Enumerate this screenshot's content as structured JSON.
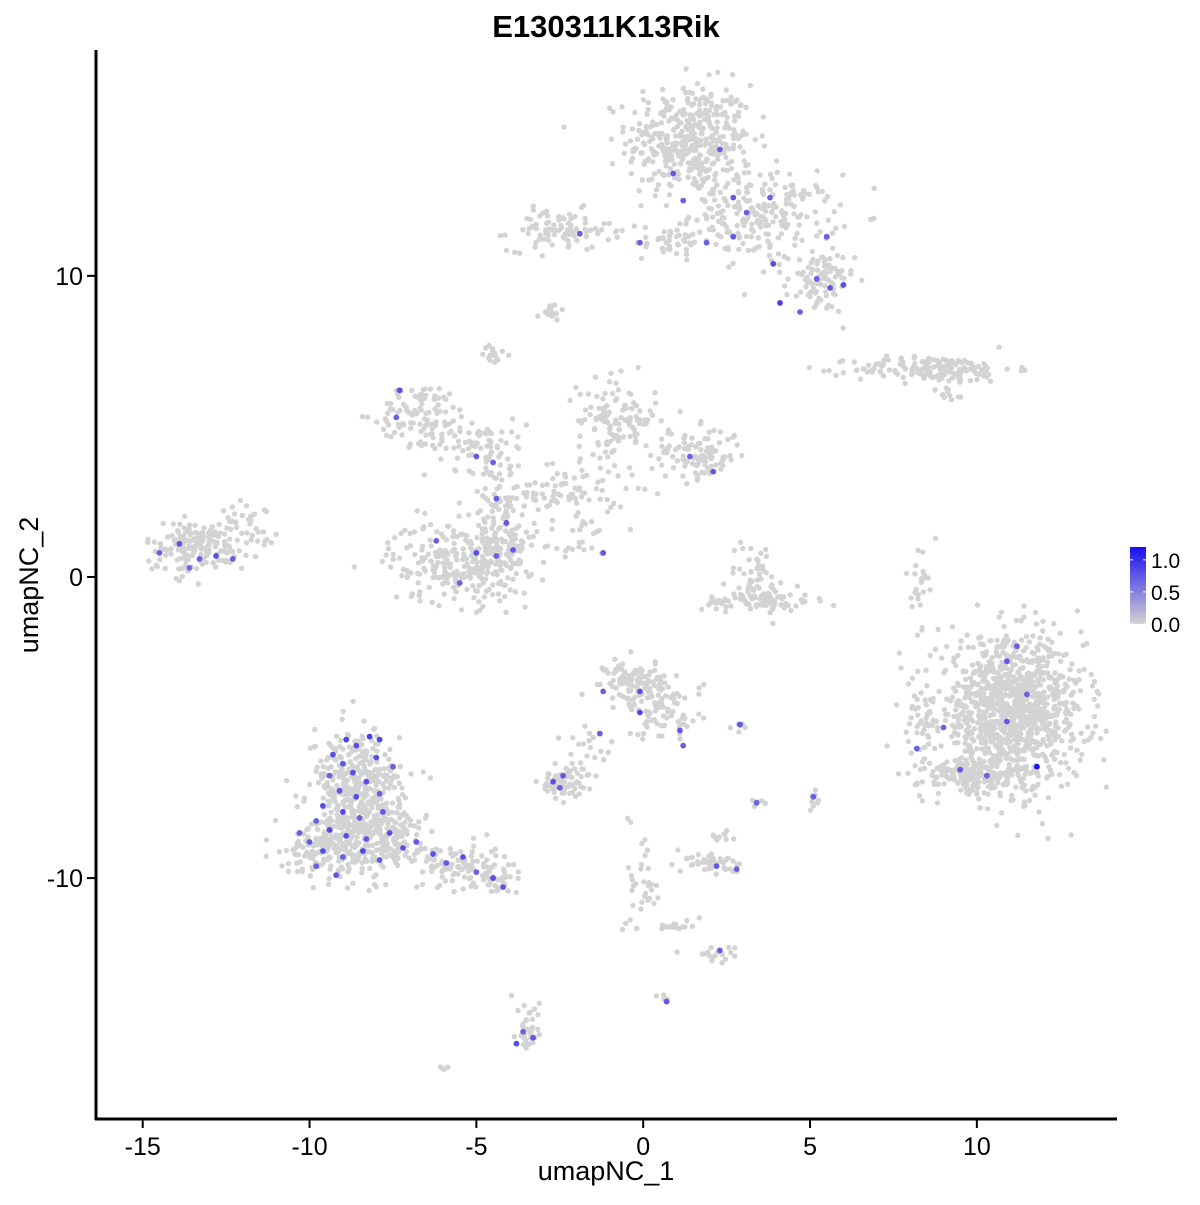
{
  "chart_data": {
    "type": "scatter",
    "title": "E130311K13Rik",
    "xlabel": "umapNC_1",
    "ylabel": "umapNC_2",
    "xlim": [
      -16.4,
      14.2
    ],
    "ylim": [
      -18.0,
      17.5
    ],
    "xticks": [
      -15,
      -10,
      -5,
      0,
      5,
      10
    ],
    "xtick_labels": [
      "-15",
      "-10",
      "-5",
      "0",
      "5",
      "10"
    ],
    "yticks": [
      -10,
      0,
      10
    ],
    "ytick_labels": [
      "-10",
      "0",
      "10"
    ],
    "grid": false,
    "legend_position": "right",
    "color_scale": {
      "low_color": "#d3d3d3",
      "high_color": "#1a0ff0",
      "min": 0.0,
      "max": 1.2,
      "ticks": [
        0.0,
        0.5,
        1.0
      ],
      "tick_labels": [
        "0.0",
        "0.5",
        "1.0"
      ]
    },
    "background_color": "#d3d3d3",
    "clusters": [
      {
        "cx": 1.4,
        "cy": 14.5,
        "sx": 1.1,
        "sy": 1.1,
        "n": 420
      },
      {
        "cx": 3.6,
        "cy": 12.0,
        "sx": 1.3,
        "sy": 0.8,
        "n": 220
      },
      {
        "cx": 5.3,
        "cy": 9.8,
        "sx": 0.6,
        "sy": 0.6,
        "n": 90
      },
      {
        "cx": -2.5,
        "cy": 11.5,
        "sx": 0.9,
        "sy": 0.4,
        "n": 90
      },
      {
        "cx": 0.6,
        "cy": 11.2,
        "sx": 0.9,
        "sy": 0.3,
        "n": 40
      },
      {
        "cx": -2.8,
        "cy": 8.8,
        "sx": 0.2,
        "sy": 0.15,
        "n": 15
      },
      {
        "cx": -4.4,
        "cy": 7.4,
        "sx": 0.25,
        "sy": 0.3,
        "n": 15
      },
      {
        "cx": 8.7,
        "cy": 6.9,
        "sx": 1.4,
        "sy": 0.25,
        "n": 160
      },
      {
        "cx": 9.3,
        "cy": 6.3,
        "sx": 0.4,
        "sy": 0.3,
        "n": 15
      },
      {
        "cx": -6.6,
        "cy": 5.4,
        "sx": 0.8,
        "sy": 0.6,
        "n": 100
      },
      {
        "cx": -5.0,
        "cy": 4.4,
        "sx": 0.9,
        "sy": 0.5,
        "n": 70
      },
      {
        "cx": -0.8,
        "cy": 5.2,
        "sx": 0.7,
        "sy": 0.8,
        "n": 120
      },
      {
        "cx": 1.6,
        "cy": 4.1,
        "sx": 0.8,
        "sy": 0.5,
        "n": 110
      },
      {
        "cx": -2.5,
        "cy": 2.8,
        "sx": 1.2,
        "sy": 0.5,
        "n": 90
      },
      {
        "cx": -4.3,
        "cy": 2.0,
        "sx": 0.4,
        "sy": 1.1,
        "n": 70
      },
      {
        "cx": -5.6,
        "cy": 0.5,
        "sx": 1.2,
        "sy": 0.8,
        "n": 230
      },
      {
        "cx": -4.2,
        "cy": 0.8,
        "sx": 0.6,
        "sy": 0.8,
        "n": 90
      },
      {
        "cx": -1.8,
        "cy": 1.3,
        "sx": 0.4,
        "sy": 0.5,
        "n": 20
      },
      {
        "cx": -13.4,
        "cy": 1.0,
        "sx": 0.9,
        "sy": 0.5,
        "n": 170
      },
      {
        "cx": -11.8,
        "cy": 1.8,
        "sx": 0.5,
        "sy": 0.4,
        "n": 35
      },
      {
        "cx": 3.4,
        "cy": 0.0,
        "sx": 0.5,
        "sy": 0.7,
        "n": 50
      },
      {
        "cx": 3.5,
        "cy": -0.8,
        "sx": 1.0,
        "sy": 0.2,
        "n": 80
      },
      {
        "cx": 8.3,
        "cy": -0.2,
        "sx": 0.15,
        "sy": 0.8,
        "n": 25
      },
      {
        "cx": 11.0,
        "cy": -4.5,
        "sx": 1.3,
        "sy": 1.4,
        "n": 1100
      },
      {
        "cx": 9.8,
        "cy": -6.6,
        "sx": 0.9,
        "sy": 0.4,
        "n": 160
      },
      {
        "cx": 8.4,
        "cy": -4.8,
        "sx": 0.3,
        "sy": 0.6,
        "n": 25
      },
      {
        "cx": -0.3,
        "cy": -3.4,
        "sx": 0.5,
        "sy": 0.4,
        "n": 90
      },
      {
        "cx": 0.6,
        "cy": -4.4,
        "sx": 0.7,
        "sy": 0.6,
        "n": 90
      },
      {
        "cx": -1.7,
        "cy": -5.8,
        "sx": 0.5,
        "sy": 0.7,
        "n": 25
      },
      {
        "cx": -2.4,
        "cy": -6.9,
        "sx": 0.45,
        "sy": 0.3,
        "n": 55
      },
      {
        "cx": 2.9,
        "cy": -5.0,
        "sx": 0.15,
        "sy": 0.1,
        "n": 6
      },
      {
        "cx": 3.4,
        "cy": -7.5,
        "sx": 0.15,
        "sy": 0.1,
        "n": 6
      },
      {
        "cx": 5.1,
        "cy": -7.4,
        "sx": 0.1,
        "sy": 0.2,
        "n": 8
      },
      {
        "cx": -8.6,
        "cy": -7.0,
        "sx": 0.8,
        "sy": 1.1,
        "n": 360
      },
      {
        "cx": -9.3,
        "cy": -8.9,
        "sx": 0.8,
        "sy": 0.6,
        "n": 200
      },
      {
        "cx": -7.8,
        "cy": -8.6,
        "sx": 0.7,
        "sy": 0.7,
        "n": 180
      },
      {
        "cx": -5.6,
        "cy": -9.5,
        "sx": 0.8,
        "sy": 0.4,
        "n": 90
      },
      {
        "cx": -4.6,
        "cy": -10.1,
        "sx": 0.5,
        "sy": 0.25,
        "n": 40
      },
      {
        "cx": 2.1,
        "cy": -9.5,
        "sx": 0.5,
        "sy": 0.25,
        "n": 45
      },
      {
        "cx": 2.4,
        "cy": -8.6,
        "sx": 0.2,
        "sy": 0.2,
        "n": 10
      },
      {
        "cx": 0.0,
        "cy": -10.0,
        "sx": 0.3,
        "sy": 1.0,
        "n": 35
      },
      {
        "cx": 1.0,
        "cy": -11.6,
        "sx": 0.4,
        "sy": 0.15,
        "n": 15
      },
      {
        "cx": 2.1,
        "cy": -12.5,
        "sx": 0.4,
        "sy": 0.15,
        "n": 18
      },
      {
        "cx": -3.4,
        "cy": -15.0,
        "sx": 0.2,
        "sy": 0.6,
        "n": 35
      },
      {
        "cx": -6.0,
        "cy": -16.3,
        "sx": 0.1,
        "sy": 0.1,
        "n": 4
      },
      {
        "cx": 0.6,
        "cy": -14.0,
        "sx": 0.1,
        "sy": 0.1,
        "n": 4
      }
    ],
    "expressing_cells": [
      {
        "x": -8.9,
        "y": -5.4,
        "v": 0.9
      },
      {
        "x": -8.6,
        "y": -5.6,
        "v": 0.8
      },
      {
        "x": -8.2,
        "y": -5.3,
        "v": 0.9
      },
      {
        "x": -7.9,
        "y": -5.4,
        "v": 0.85
      },
      {
        "x": -9.3,
        "y": -5.9,
        "v": 0.8
      },
      {
        "x": -9.0,
        "y": -6.2,
        "v": 0.75
      },
      {
        "x": -8.7,
        "y": -6.5,
        "v": 0.8
      },
      {
        "x": -9.4,
        "y": -6.6,
        "v": 0.7
      },
      {
        "x": -8.3,
        "y": -6.8,
        "v": 0.8
      },
      {
        "x": -9.1,
        "y": -7.1,
        "v": 0.75
      },
      {
        "x": -8.6,
        "y": -7.3,
        "v": 0.8
      },
      {
        "x": -7.9,
        "y": -7.2,
        "v": 0.7
      },
      {
        "x": -9.6,
        "y": -7.6,
        "v": 0.8
      },
      {
        "x": -9.0,
        "y": -7.8,
        "v": 0.85
      },
      {
        "x": -8.5,
        "y": -8.0,
        "v": 0.7
      },
      {
        "x": -7.8,
        "y": -7.8,
        "v": 0.75
      },
      {
        "x": -9.8,
        "y": -8.1,
        "v": 0.7
      },
      {
        "x": -9.4,
        "y": -8.4,
        "v": 0.85
      },
      {
        "x": -8.9,
        "y": -8.6,
        "v": 0.8
      },
      {
        "x": -8.3,
        "y": -8.7,
        "v": 0.75
      },
      {
        "x": -7.6,
        "y": -8.5,
        "v": 0.8
      },
      {
        "x": -10.0,
        "y": -8.8,
        "v": 0.75
      },
      {
        "x": -9.6,
        "y": -9.1,
        "v": 0.8
      },
      {
        "x": -9.0,
        "y": -9.3,
        "v": 0.7
      },
      {
        "x": -8.4,
        "y": -9.1,
        "v": 0.85
      },
      {
        "x": -7.9,
        "y": -9.4,
        "v": 0.75
      },
      {
        "x": -9.8,
        "y": -9.6,
        "v": 0.7
      },
      {
        "x": -7.2,
        "y": -9.0,
        "v": 0.8
      },
      {
        "x": -6.8,
        "y": -8.8,
        "v": 0.75
      },
      {
        "x": -6.3,
        "y": -9.2,
        "v": 0.8
      },
      {
        "x": -5.9,
        "y": -9.5,
        "v": 0.75
      },
      {
        "x": -5.4,
        "y": -9.3,
        "v": 0.8
      },
      {
        "x": -5.0,
        "y": -9.8,
        "v": 0.7
      },
      {
        "x": -4.5,
        "y": -10.0,
        "v": 0.8
      },
      {
        "x": -4.2,
        "y": -10.3,
        "v": 0.75
      },
      {
        "x": -7.5,
        "y": -6.3,
        "v": 0.7
      },
      {
        "x": -8.0,
        "y": -6.0,
        "v": 0.8
      },
      {
        "x": -10.3,
        "y": -8.5,
        "v": 0.7
      },
      {
        "x": -9.2,
        "y": -9.9,
        "v": 0.75
      },
      {
        "x": -14.5,
        "y": 0.8,
        "v": 0.7
      },
      {
        "x": -13.9,
        "y": 1.1,
        "v": 0.75
      },
      {
        "x": -13.3,
        "y": 0.6,
        "v": 0.7
      },
      {
        "x": -12.8,
        "y": 0.7,
        "v": 0.8
      },
      {
        "x": -12.3,
        "y": 0.6,
        "v": 0.7
      },
      {
        "x": -13.6,
        "y": 0.3,
        "v": 0.65
      },
      {
        "x": -7.3,
        "y": 6.2,
        "v": 0.8
      },
      {
        "x": -7.4,
        "y": 5.3,
        "v": 0.7
      },
      {
        "x": -5.0,
        "y": 4.0,
        "v": 0.75
      },
      {
        "x": -4.5,
        "y": 3.8,
        "v": 0.7
      },
      {
        "x": -4.4,
        "y": 2.6,
        "v": 0.7
      },
      {
        "x": -4.1,
        "y": 1.8,
        "v": 0.75
      },
      {
        "x": -6.2,
        "y": 1.2,
        "v": 0.7
      },
      {
        "x": -5.0,
        "y": 0.8,
        "v": 0.8
      },
      {
        "x": -4.4,
        "y": 0.7,
        "v": 0.7
      },
      {
        "x": -3.9,
        "y": 0.9,
        "v": 0.75
      },
      {
        "x": -5.5,
        "y": -0.2,
        "v": 0.7
      },
      {
        "x": -1.2,
        "y": 0.8,
        "v": 0.75
      },
      {
        "x": 1.4,
        "y": 4.0,
        "v": 0.7
      },
      {
        "x": 2.1,
        "y": 3.5,
        "v": 0.75
      },
      {
        "x": 0.9,
        "y": 13.4,
        "v": 0.75
      },
      {
        "x": 2.3,
        "y": 14.2,
        "v": 0.7
      },
      {
        "x": 1.2,
        "y": 12.5,
        "v": 0.7
      },
      {
        "x": 2.7,
        "y": 12.6,
        "v": 0.75
      },
      {
        "x": 3.1,
        "y": 12.1,
        "v": 0.7
      },
      {
        "x": 3.8,
        "y": 12.6,
        "v": 0.7
      },
      {
        "x": 1.9,
        "y": 11.1,
        "v": 0.7
      },
      {
        "x": 2.7,
        "y": 11.3,
        "v": 0.75
      },
      {
        "x": 3.9,
        "y": 10.4,
        "v": 0.8
      },
      {
        "x": 4.1,
        "y": 9.1,
        "v": 0.9
      },
      {
        "x": 5.2,
        "y": 9.9,
        "v": 0.7
      },
      {
        "x": 5.6,
        "y": 9.6,
        "v": 0.75
      },
      {
        "x": 6.0,
        "y": 9.7,
        "v": 0.8
      },
      {
        "x": 4.7,
        "y": 8.8,
        "v": 0.7
      },
      {
        "x": 5.5,
        "y": 11.3,
        "v": 0.7
      },
      {
        "x": -1.9,
        "y": 11.4,
        "v": 0.7
      },
      {
        "x": -0.1,
        "y": 11.1,
        "v": 0.7
      },
      {
        "x": 11.2,
        "y": -2.3,
        "v": 0.7
      },
      {
        "x": 10.9,
        "y": -2.8,
        "v": 0.75
      },
      {
        "x": 11.5,
        "y": -3.9,
        "v": 0.7
      },
      {
        "x": 10.9,
        "y": -4.8,
        "v": 0.75
      },
      {
        "x": 9.0,
        "y": -5.0,
        "v": 0.7
      },
      {
        "x": 8.2,
        "y": -5.7,
        "v": 0.7
      },
      {
        "x": 9.5,
        "y": -6.4,
        "v": 0.75
      },
      {
        "x": 10.3,
        "y": -6.6,
        "v": 0.7
      },
      {
        "x": 11.8,
        "y": -6.3,
        "v": 1.2
      },
      {
        "x": -0.1,
        "y": -3.8,
        "v": 0.8
      },
      {
        "x": -0.1,
        "y": -4.5,
        "v": 0.85
      },
      {
        "x": -1.2,
        "y": -3.8,
        "v": 0.7
      },
      {
        "x": -1.3,
        "y": -5.2,
        "v": 0.7
      },
      {
        "x": 1.1,
        "y": -5.1,
        "v": 0.75
      },
      {
        "x": 1.2,
        "y": -5.6,
        "v": 0.7
      },
      {
        "x": 2.9,
        "y": -4.9,
        "v": 0.75
      },
      {
        "x": -2.7,
        "y": -6.8,
        "v": 0.8
      },
      {
        "x": -2.4,
        "y": -6.6,
        "v": 0.75
      },
      {
        "x": -2.5,
        "y": -7.0,
        "v": 0.7
      },
      {
        "x": 3.4,
        "y": -7.5,
        "v": 0.7
      },
      {
        "x": 5.1,
        "y": -7.3,
        "v": 0.7
      },
      {
        "x": 2.2,
        "y": -9.6,
        "v": 0.75
      },
      {
        "x": 2.8,
        "y": -9.7,
        "v": 0.7
      },
      {
        "x": 2.3,
        "y": -12.4,
        "v": 0.7
      },
      {
        "x": 0.7,
        "y": -14.1,
        "v": 0.75
      },
      {
        "x": -3.6,
        "y": -15.1,
        "v": 0.7
      },
      {
        "x": -3.3,
        "y": -15.3,
        "v": 0.75
      },
      {
        "x": -3.8,
        "y": -15.5,
        "v": 0.8
      }
    ]
  }
}
